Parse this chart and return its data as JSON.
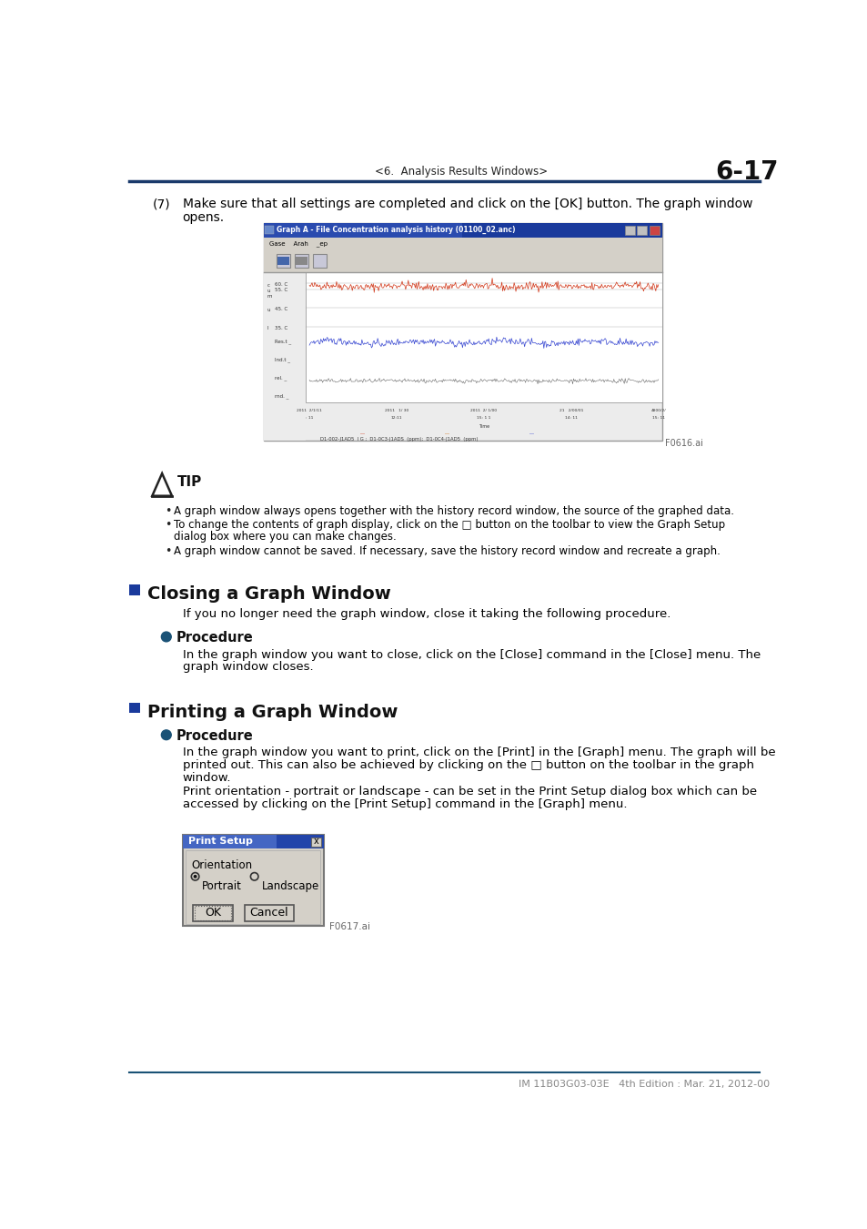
{
  "page_header_left": "<6.  Analysis Results Windows>",
  "page_header_right": "6-17",
  "header_line_color": "#1a3a6b",
  "bg_color": "#ffffff",
  "text_color": "#000000",
  "blue_accent": "#1a5276",
  "step7_num": "(7)",
  "step7_line1": "Make sure that all settings are completed and click on the [OK] button. The graph window",
  "step7_line2": "opens.",
  "f0616_label": "F0616.ai",
  "f0617_label": "F0617.ai",
  "tip_title": "TIP",
  "tip_bullet1": "A graph window always opens together with the history record window, the source of the graphed data.",
  "tip_bullet2a": "To change the contents of graph display, click on the □ button on the toolbar to view the Graph Setup",
  "tip_bullet2b": "dialog box where you can make changes.",
  "tip_bullet3": "A graph window cannot be saved. If necessary, save the history record window and recreate a graph.",
  "sec1_title": "Closing a Graph Window",
  "sec1_intro": "If you no longer need the graph window, close it taking the following procedure.",
  "proc_title": "Procedure",
  "sec1_proc1": "In the graph window you want to close, click on the [Close] command in the [Close] menu. The",
  "sec1_proc2": "graph window closes.",
  "sec2_title": "Printing a Graph Window",
  "sec2_proc1a": "In the graph window you want to print, click on the [Print] in the [Graph] menu. The graph will be",
  "sec2_proc1b": "printed out. This can also be achieved by clicking on the □ button on the toolbar in the graph",
  "sec2_proc1c": "window.",
  "sec2_proc2a": "Print orientation - portrait or landscape - can be set in the Print Setup dialog box which can be",
  "sec2_proc2b": "accessed by clicking on the [Print Setup] command in the [Graph] menu.",
  "dialog_title": "Print Setup",
  "dialog_orient": "Orientation",
  "dialog_portrait": "Portrait",
  "dialog_landscape": "Landscape",
  "dialog_ok": "OK",
  "dialog_cancel": "Cancel",
  "footer_text": "IM 11B03G03-03E   4th Edition : Mar. 21, 2012-00",
  "footer_line_color": "#1a5276"
}
